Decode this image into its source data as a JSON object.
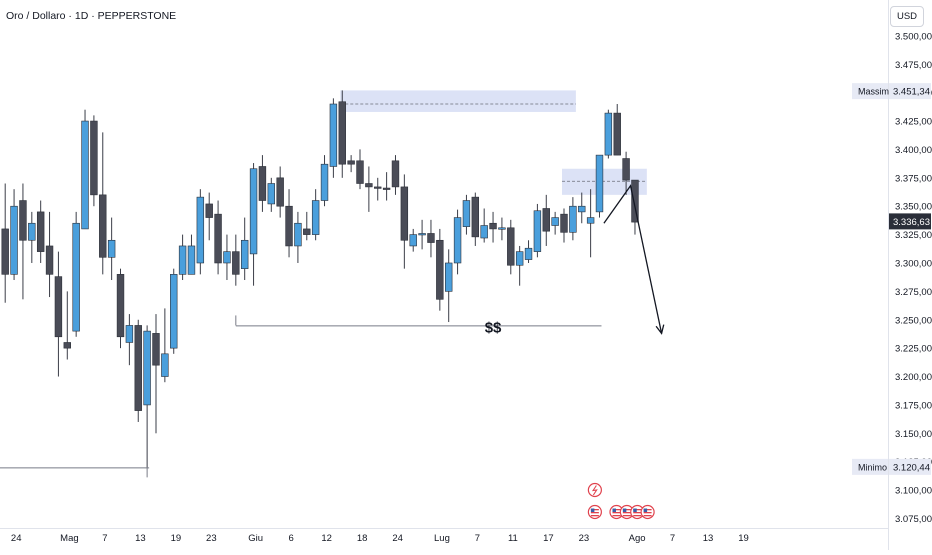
{
  "header": {
    "title": "Oro / Dollaro · 1D · PEPPERSTONE",
    "currency": "USD"
  },
  "chart_data": {
    "type": "candlestick",
    "title": "Oro / Dollaro · 1D · PEPPERSTONE",
    "currency": "USD",
    "ylim": [
      3060,
      3525
    ],
    "y_ticks": [
      "3.075,00",
      "3.100,00",
      "3.125,00",
      "3.150,00",
      "3.175,00",
      "3.200,00",
      "3.225,00",
      "3.250,00",
      "3.275,00",
      "3.300,00",
      "3.325,00",
      "3.350,00",
      "3.375,00",
      "3.400,00",
      "3.425,00",
      "3.450,00",
      "3.475,00",
      "3.500,00"
    ],
    "x_ticks": [
      {
        "label": "24",
        "idx": 0
      },
      {
        "label": "Mag",
        "idx": 6
      },
      {
        "label": "7",
        "idx": 10
      },
      {
        "label": "13",
        "idx": 14
      },
      {
        "label": "19",
        "idx": 18
      },
      {
        "label": "23",
        "idx": 22
      },
      {
        "label": "Giu",
        "idx": 27
      },
      {
        "label": "6",
        "idx": 31
      },
      {
        "label": "12",
        "idx": 35
      },
      {
        "label": "18",
        "idx": 39
      },
      {
        "label": "24",
        "idx": 43
      },
      {
        "label": "Lug",
        "idx": 48
      },
      {
        "label": "7",
        "idx": 52
      },
      {
        "label": "11",
        "idx": 56
      },
      {
        "label": "17",
        "idx": 60
      },
      {
        "label": "23",
        "idx": 64
      },
      {
        "label": "Ago",
        "idx": 70
      },
      {
        "label": "7",
        "idx": 74
      },
      {
        "label": "13",
        "idx": 78
      },
      {
        "label": "19",
        "idx": 82
      }
    ],
    "candles": [
      {
        "o": 3330,
        "h": 3370,
        "l": 3265,
        "c": 3290
      },
      {
        "o": 3290,
        "h": 3365,
        "l": 3285,
        "c": 3350
      },
      {
        "o": 3355,
        "h": 3370,
        "l": 3268,
        "c": 3320
      },
      {
        "o": 3320,
        "h": 3345,
        "l": 3300,
        "c": 3335
      },
      {
        "o": 3345,
        "h": 3355,
        "l": 3300,
        "c": 3310
      },
      {
        "o": 3315,
        "h": 3345,
        "l": 3270,
        "c": 3290
      },
      {
        "o": 3288,
        "h": 3310,
        "l": 3200,
        "c": 3235
      },
      {
        "o": 3230,
        "h": 3275,
        "l": 3215,
        "c": 3225
      },
      {
        "o": 3240,
        "h": 3345,
        "l": 3235,
        "c": 3335
      },
      {
        "o": 3330,
        "h": 3435,
        "l": 3330,
        "c": 3425
      },
      {
        "o": 3425,
        "h": 3430,
        "l": 3350,
        "c": 3360
      },
      {
        "o": 3360,
        "h": 3415,
        "l": 3290,
        "c": 3305
      },
      {
        "o": 3305,
        "h": 3340,
        "l": 3285,
        "c": 3320
      },
      {
        "o": 3290,
        "h": 3295,
        "l": 3225,
        "c": 3235
      },
      {
        "o": 3230,
        "h": 3255,
        "l": 3210,
        "c": 3245
      },
      {
        "o": 3245,
        "h": 3250,
        "l": 3160,
        "c": 3170
      },
      {
        "o": 3175,
        "h": 3245,
        "l": 3120,
        "c": 3240
      },
      {
        "o": 3238,
        "h": 3255,
        "l": 3150,
        "c": 3210
      },
      {
        "o": 3200,
        "h": 3260,
        "l": 3195,
        "c": 3220
      },
      {
        "o": 3225,
        "h": 3295,
        "l": 3220,
        "c": 3290
      },
      {
        "o": 3290,
        "h": 3325,
        "l": 3285,
        "c": 3315
      },
      {
        "o": 3290,
        "h": 3325,
        "l": 3290,
        "c": 3315
      },
      {
        "o": 3300,
        "h": 3365,
        "l": 3290,
        "c": 3358
      },
      {
        "o": 3352,
        "h": 3362,
        "l": 3320,
        "c": 3340
      },
      {
        "o": 3343,
        "h": 3355,
        "l": 3290,
        "c": 3300
      },
      {
        "o": 3300,
        "h": 3325,
        "l": 3285,
        "c": 3310
      },
      {
        "o": 3310,
        "h": 3325,
        "l": 3280,
        "c": 3290
      },
      {
        "o": 3295,
        "h": 3340,
        "l": 3285,
        "c": 3320
      },
      {
        "o": 3308,
        "h": 3388,
        "l": 3280,
        "c": 3383
      },
      {
        "o": 3385,
        "h": 3395,
        "l": 3345,
        "c": 3355
      },
      {
        "o": 3352,
        "h": 3375,
        "l": 3345,
        "c": 3370
      },
      {
        "o": 3375,
        "h": 3385,
        "l": 3340,
        "c": 3350
      },
      {
        "o": 3350,
        "h": 3365,
        "l": 3305,
        "c": 3315
      },
      {
        "o": 3315,
        "h": 3345,
        "l": 3300,
        "c": 3335
      },
      {
        "o": 3330,
        "h": 3345,
        "l": 3320,
        "c": 3325
      },
      {
        "o": 3325,
        "h": 3365,
        "l": 3320,
        "c": 3355
      },
      {
        "o": 3355,
        "h": 3395,
        "l": 3350,
        "c": 3387
      },
      {
        "o": 3385,
        "h": 3445,
        "l": 3375,
        "c": 3440
      },
      {
        "o": 3442,
        "h": 3452,
        "l": 3375,
        "c": 3387
      },
      {
        "o": 3390,
        "h": 3395,
        "l": 3380,
        "c": 3387
      },
      {
        "o": 3390,
        "h": 3400,
        "l": 3365,
        "c": 3370
      },
      {
        "o": 3370,
        "h": 3385,
        "l": 3345,
        "c": 3367
      },
      {
        "o": 3367,
        "h": 3375,
        "l": 3355,
        "c": 3366
      },
      {
        "o": 3366,
        "h": 3380,
        "l": 3355,
        "c": 3365
      },
      {
        "o": 3390,
        "h": 3395,
        "l": 3360,
        "c": 3367
      },
      {
        "o": 3367,
        "h": 3378,
        "l": 3295,
        "c": 3320
      },
      {
        "o": 3315,
        "h": 3330,
        "l": 3310,
        "c": 3325
      },
      {
        "o": 3326,
        "h": 3338,
        "l": 3312,
        "c": 3326
      },
      {
        "o": 3326,
        "h": 3338,
        "l": 3305,
        "c": 3318
      },
      {
        "o": 3320,
        "h": 3330,
        "l": 3258,
        "c": 3268
      },
      {
        "o": 3275,
        "h": 3312,
        "l": 3248,
        "c": 3300
      },
      {
        "o": 3300,
        "h": 3347,
        "l": 3290,
        "c": 3340
      },
      {
        "o": 3332,
        "h": 3360,
        "l": 3325,
        "c": 3355
      },
      {
        "o": 3358,
        "h": 3362,
        "l": 3315,
        "c": 3323
      },
      {
        "o": 3322,
        "h": 3348,
        "l": 3318,
        "c": 3333
      },
      {
        "o": 3335,
        "h": 3345,
        "l": 3318,
        "c": 3330
      },
      {
        "o": 3331,
        "h": 3340,
        "l": 3320,
        "c": 3331
      },
      {
        "o": 3331,
        "h": 3338,
        "l": 3290,
        "c": 3298
      },
      {
        "o": 3298,
        "h": 3315,
        "l": 3280,
        "c": 3310
      },
      {
        "o": 3303,
        "h": 3320,
        "l": 3300,
        "c": 3313
      },
      {
        "o": 3310,
        "h": 3352,
        "l": 3305,
        "c": 3346
      },
      {
        "o": 3348,
        "h": 3360,
        "l": 3315,
        "c": 3328
      },
      {
        "o": 3333,
        "h": 3345,
        "l": 3325,
        "c": 3340
      },
      {
        "o": 3343,
        "h": 3348,
        "l": 3318,
        "c": 3327
      },
      {
        "o": 3327,
        "h": 3358,
        "l": 3320,
        "c": 3350
      },
      {
        "o": 3345,
        "h": 3362,
        "l": 3335,
        "c": 3350
      },
      {
        "o": 3335,
        "h": 3365,
        "l": 3305,
        "c": 3340
      },
      {
        "o": 3345,
        "h": 3395,
        "l": 3340,
        "c": 3395
      },
      {
        "o": 3395,
        "h": 3435,
        "l": 3392,
        "c": 3432
      },
      {
        "o": 3432,
        "h": 3440,
        "l": 3395,
        "c": 3395
      },
      {
        "o": 3392,
        "h": 3398,
        "l": 3360,
        "c": 3373
      },
      {
        "o": 3373,
        "h": 3370,
        "l": 3325,
        "c": 3336
      }
    ],
    "last_price": "3.336,63",
    "labels": {
      "high_label": "Massimo",
      "high_value": "3.451,34",
      "low_label": "Minimo",
      "low_value": "3.120,44",
      "liquidity_label": "$$"
    },
    "zones": [
      {
        "name": "upper-supply-zone",
        "y_top": 3452,
        "y_bottom": 3433,
        "mid": 3440,
        "from_idx": 38,
        "to_idx": 64
      },
      {
        "name": "right-supply-zone",
        "y_top": 3383,
        "y_bottom": 3360,
        "mid": 3372,
        "from_idx": 63,
        "to_idx": 72
      }
    ],
    "levels": [
      {
        "name": "liquidity-line",
        "y": 3245,
        "from_idx": 26,
        "to_idx": 67
      },
      {
        "name": "low-line",
        "y": 3120,
        "from_idx": -1,
        "to_idx": 16
      }
    ],
    "projection": [
      {
        "idx": 67.5,
        "y": 3335
      },
      {
        "idx": 70.5,
        "y": 3368
      },
      {
        "idx": 74,
        "y": 3238
      }
    ],
    "colors": {
      "bull": "#4a9fdc",
      "bear": "#4a4c57",
      "zone": "rgba(178,191,235,0.45)",
      "line": "#787b86",
      "price_tag": "#2a2e39"
    },
    "events": {
      "flash_idx": 64,
      "flag_idxs": [
        64,
        67,
        68,
        69,
        70
      ]
    }
  }
}
